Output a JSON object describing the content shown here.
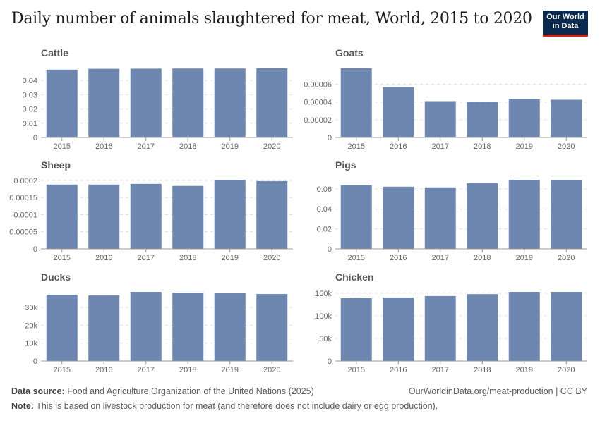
{
  "header": {
    "title": "Daily number of animals slaughtered for meat, World, 2015 to 2020",
    "logo": "Our World in Data"
  },
  "footer": {
    "source_label": "Data source:",
    "source": "Food and Agriculture Organization of the United Nations (2025)",
    "url": "OurWorldinData.org/meat-production | CC BY",
    "note_label": "Note:",
    "note": "This is based on livestock production for meat (and therefore does not include dairy or egg production)."
  },
  "colors": {
    "bar": "#6d87b0",
    "grid": "#dddddd",
    "axis": "#999999"
  },
  "chart_data": [
    {
      "type": "bar",
      "title": "Cattle",
      "categories": [
        "2015",
        "2016",
        "2017",
        "2018",
        "2019",
        "2020"
      ],
      "values": [
        0.0476,
        0.0482,
        0.0483,
        0.0484,
        0.0484,
        0.0485
      ],
      "ticks": [
        0,
        0.01,
        0.02,
        0.03,
        0.04
      ],
      "tick_labels": [
        "0",
        "0.01",
        "0.02",
        "0.03",
        "0.04"
      ],
      "grid": true
    },
    {
      "type": "bar",
      "title": "Goats",
      "categories": [
        "2015",
        "2016",
        "2017",
        "2018",
        "2019",
        "2020"
      ],
      "values": [
        7.8e-05,
        5.68e-05,
        4.1e-05,
        4.03e-05,
        4.34e-05,
        4.26e-05
      ],
      "ticks": [
        0,
        2e-05,
        4e-05,
        6e-05
      ],
      "tick_labels": [
        "0",
        "0.00002",
        "0.00004",
        "0.00006"
      ],
      "grid": true
    },
    {
      "type": "bar",
      "title": "Sheep",
      "categories": [
        "2015",
        "2016",
        "2017",
        "2018",
        "2019",
        "2020"
      ],
      "values": [
        0.000188,
        0.000188,
        0.00019,
        0.000184,
        0.000202,
        0.000198
      ],
      "ticks": [
        0,
        5e-05,
        0.0001,
        0.00015,
        0.0002
      ],
      "tick_labels": [
        "0",
        "0.00005",
        "0.0001",
        "0.00015",
        "0.0002"
      ],
      "grid": true
    },
    {
      "type": "bar",
      "title": "Pigs",
      "categories": [
        "2015",
        "2016",
        "2017",
        "2018",
        "2019",
        "2020"
      ],
      "values": [
        0.0635,
        0.0621,
        0.0614,
        0.0656,
        0.069,
        0.069
      ],
      "ticks": [
        0,
        0.02,
        0.04,
        0.06
      ],
      "tick_labels": [
        "0",
        "0.02",
        "0.04",
        "0.06"
      ],
      "grid": true
    },
    {
      "type": "bar",
      "title": "Ducks",
      "categories": [
        "2015",
        "2016",
        "2017",
        "2018",
        "2019",
        "2020"
      ],
      "values": [
        37100,
        36700,
        38700,
        38300,
        37900,
        37500
      ],
      "ticks": [
        0,
        10000,
        20000,
        30000
      ],
      "tick_labels": [
        "0",
        "10k",
        "20k",
        "30k"
      ],
      "grid": true
    },
    {
      "type": "bar",
      "title": "Chicken",
      "categories": [
        "2015",
        "2016",
        "2017",
        "2018",
        "2019",
        "2020"
      ],
      "values": [
        139000,
        140600,
        143800,
        148000,
        153000,
        153000
      ],
      "ticks": [
        0,
        50000,
        100000,
        150000
      ],
      "tick_labels": [
        "0",
        "50k",
        "100k",
        "150k"
      ],
      "grid": true
    }
  ]
}
